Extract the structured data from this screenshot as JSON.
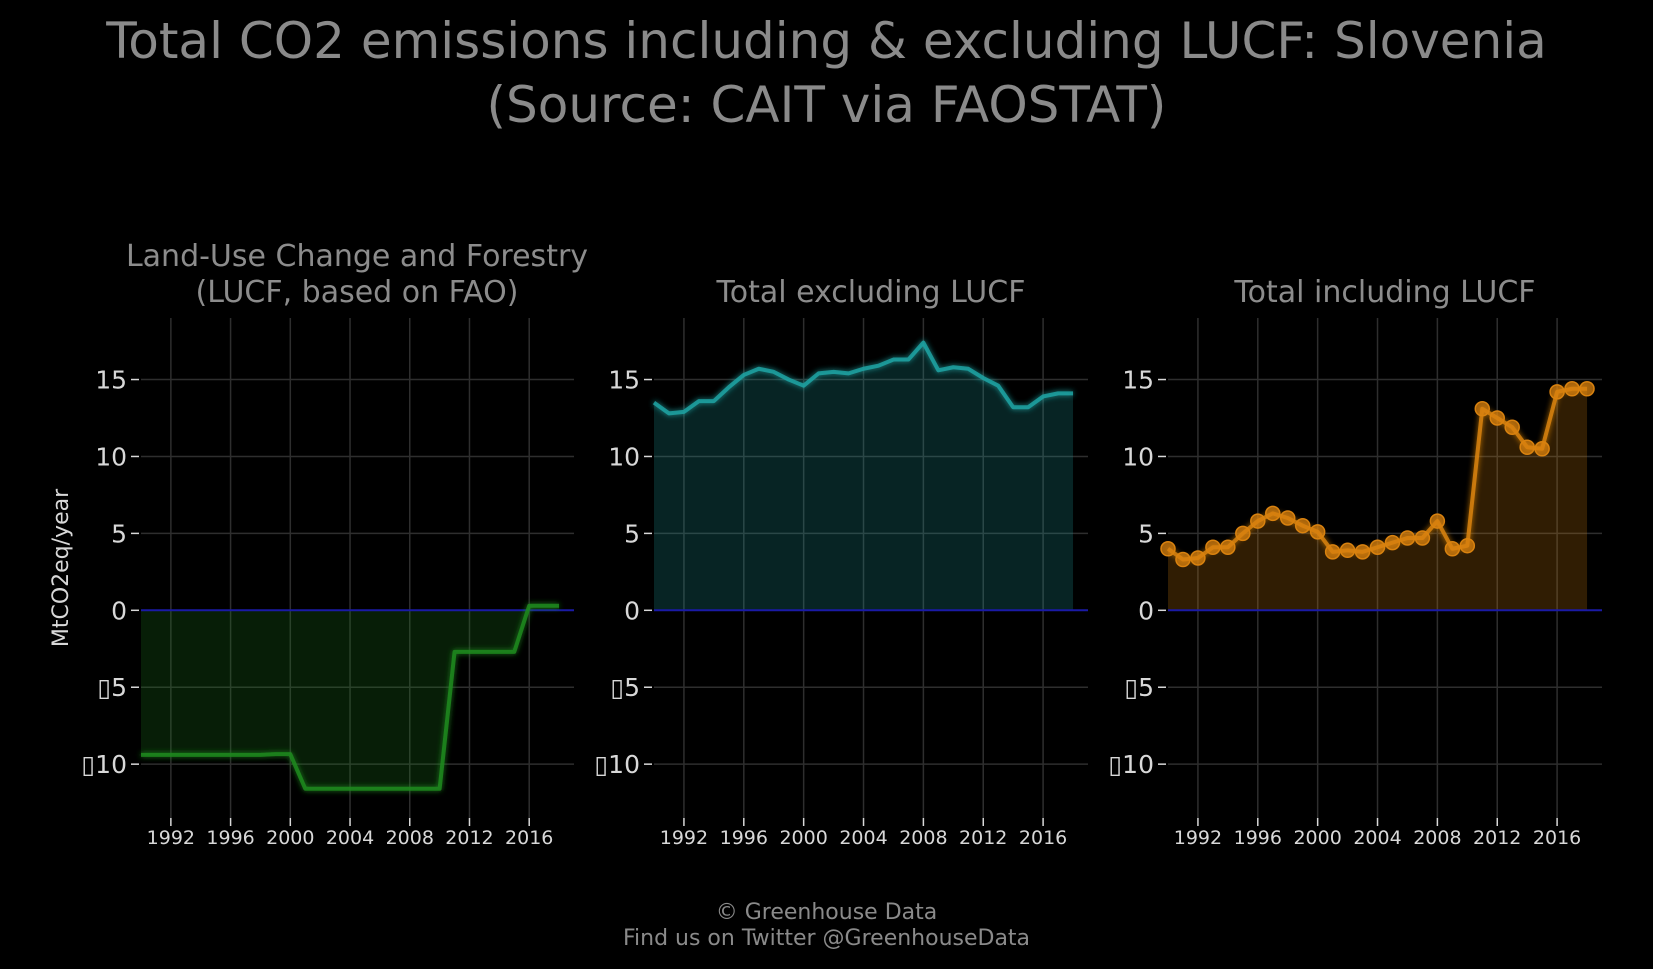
{
  "title_line1": "Total CO2 emissions including & excluding LUCF: Slovenia",
  "title_line2": "(Source: CAIT via FAOSTAT)",
  "footer_line1": "© Greenhouse Data",
  "footer_line2": "Find us on Twitter @GreenhouseData",
  "colors": {
    "background": "#000000",
    "grid": "#2e2e2e",
    "zero_line": "#1a1aa6",
    "lucf": "#1f8a1f",
    "excl": "#1fa3a3",
    "incl": "#d9820f"
  },
  "chart_data": [
    {
      "type": "area",
      "title": "Land-Use Change and Forestry (LUCF, based on FAO)",
      "title_lines": [
        "Land-Use Change and Forestry",
        "(LUCF, based on FAO)"
      ],
      "ylabel": "MtCO2eq/year",
      "xlabel": "",
      "x": [
        1990,
        1991,
        1992,
        1993,
        1994,
        1995,
        1996,
        1997,
        1998,
        1999,
        2000,
        2001,
        2002,
        2003,
        2004,
        2005,
        2006,
        2007,
        2008,
        2009,
        2010,
        2011,
        2012,
        2013,
        2014,
        2015,
        2016,
        2017,
        2018
      ],
      "values": [
        -9.4,
        -9.4,
        -9.4,
        -9.4,
        -9.4,
        -9.4,
        -9.4,
        -9.4,
        -9.4,
        -9.35,
        -9.35,
        -11.6,
        -11.6,
        -11.6,
        -11.6,
        -11.6,
        -11.6,
        -11.6,
        -11.6,
        -11.6,
        -11.6,
        -2.7,
        -2.7,
        -2.7,
        -2.7,
        -2.7,
        0.3,
        0.3,
        0.3
      ],
      "markers": false,
      "color": "lucf",
      "xticks": [
        1992,
        1996,
        2000,
        2004,
        2008,
        2012,
        2016
      ],
      "yticks": [
        -10,
        -5,
        0,
        5,
        10,
        15
      ],
      "ytick_labels": [
        "\u0000",
        "\u0000",
        "0",
        "5",
        "10",
        "15"
      ],
      "xlim": [
        1990,
        2019
      ],
      "ylim": [
        -13.5,
        19
      ],
      "grid": true
    },
    {
      "type": "area",
      "title": "Total excluding LUCF",
      "title_lines": [
        "Total excluding LUCF"
      ],
      "ylabel": "",
      "xlabel": "",
      "x": [
        1990,
        1991,
        1992,
        1993,
        1994,
        1995,
        1996,
        1997,
        1998,
        1999,
        2000,
        2001,
        2002,
        2003,
        2004,
        2005,
        2006,
        2007,
        2008,
        2009,
        2010,
        2011,
        2012,
        2013,
        2014,
        2015,
        2016,
        2017,
        2018
      ],
      "values": [
        13.5,
        12.8,
        12.9,
        13.6,
        13.6,
        14.5,
        15.3,
        15.7,
        15.5,
        15.0,
        14.6,
        15.4,
        15.5,
        15.4,
        15.7,
        15.9,
        16.3,
        16.3,
        17.4,
        15.6,
        15.8,
        15.7,
        15.1,
        14.6,
        13.2,
        13.2,
        13.9,
        14.1,
        14.1
      ],
      "markers": false,
      "color": "excl",
      "xticks": [
        1992,
        1996,
        2000,
        2004,
        2008,
        2012,
        2016
      ],
      "yticks": [
        -10,
        -5,
        0,
        5,
        10,
        15
      ],
      "ytick_labels": [
        "\u0000",
        "\u0000",
        "0",
        "5",
        "10",
        "15"
      ],
      "xlim": [
        1990,
        2019
      ],
      "ylim": [
        -13.5,
        19
      ],
      "grid": true
    },
    {
      "type": "area",
      "title": "Total including LUCF",
      "title_lines": [
        "Total including LUCF"
      ],
      "ylabel": "",
      "xlabel": "",
      "x": [
        1990,
        1991,
        1992,
        1993,
        1994,
        1995,
        1996,
        1997,
        1998,
        1999,
        2000,
        2001,
        2002,
        2003,
        2004,
        2005,
        2006,
        2007,
        2008,
        2009,
        2010,
        2011,
        2012,
        2013,
        2014,
        2015,
        2016,
        2017,
        2018
      ],
      "values": [
        4.0,
        3.3,
        3.4,
        4.1,
        4.1,
        5.0,
        5.8,
        6.3,
        6.0,
        5.5,
        5.1,
        3.8,
        3.9,
        3.8,
        4.1,
        4.4,
        4.7,
        4.7,
        5.8,
        4.0,
        4.2,
        13.1,
        12.5,
        11.9,
        10.6,
        10.5,
        14.2,
        14.4,
        14.4
      ],
      "markers": true,
      "color": "incl",
      "xticks": [
        1992,
        1996,
        2000,
        2004,
        2008,
        2012,
        2016
      ],
      "yticks": [
        -10,
        -5,
        0,
        5,
        10,
        15
      ],
      "ytick_labels": [
        "\u0000",
        "\u0000",
        "0",
        "5",
        "10",
        "15"
      ],
      "xlim": [
        1990,
        2019
      ],
      "ylim": [
        -13.5,
        19
      ],
      "grid": true
    }
  ]
}
